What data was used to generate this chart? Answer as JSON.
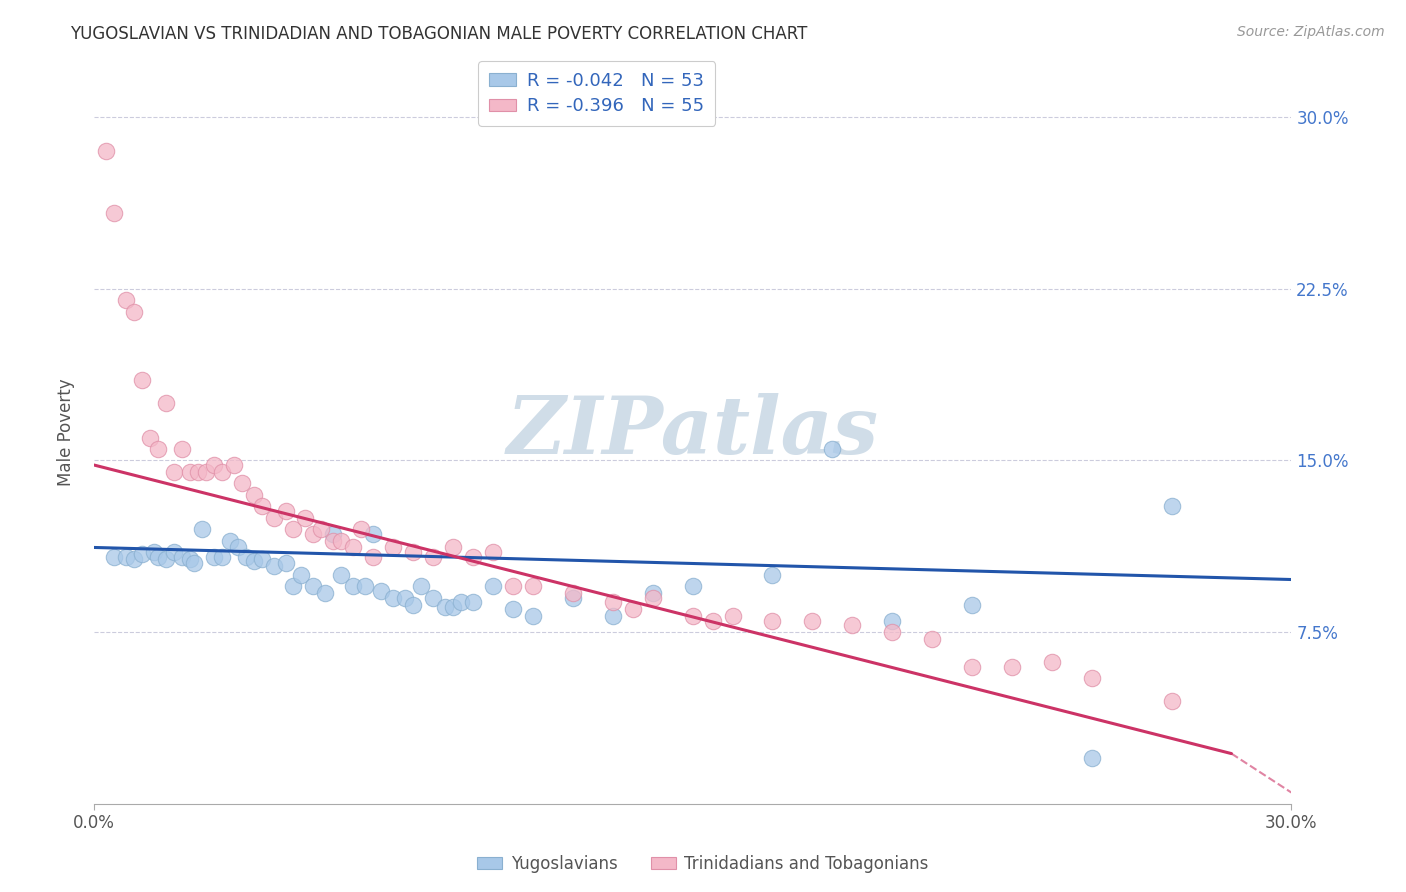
{
  "title": "YUGOSLAVIAN VS TRINIDADIAN AND TOBAGONIAN MALE POVERTY CORRELATION CHART",
  "source": "Source: ZipAtlas.com",
  "ylabel": "Male Poverty",
  "ytick_labels": [
    "7.5%",
    "15.0%",
    "22.5%",
    "30.0%"
  ],
  "ytick_values": [
    0.075,
    0.15,
    0.225,
    0.3
  ],
  "xlim": [
    0.0,
    0.3
  ],
  "ylim": [
    0.0,
    0.325
  ],
  "scatter1_color": "#a8c8e8",
  "scatter2_color": "#f4b8c8",
  "trendline1_color": "#2255aa",
  "trendline2_color": "#cc3366",
  "watermark_color": "#d0dde8",
  "watermark": "ZIPatlas",
  "legend_label1": "Yugoslavians",
  "legend_label2": "Trinidadians and Tobagonians",
  "R_yug": -0.042,
  "N_yug": 53,
  "R_tri": -0.396,
  "N_tri": 55,
  "trendline1_x0": 0.0,
  "trendline1_x1": 0.3,
  "trendline1_y0": 0.112,
  "trendline1_y1": 0.098,
  "trendline2_x0": 0.0,
  "trendline2_x1": 0.285,
  "trendline2_y0": 0.148,
  "trendline2_y1": 0.022,
  "background_color": "#ffffff",
  "grid_color": "#ccccdd",
  "yug_x": [
    0.005,
    0.008,
    0.01,
    0.012,
    0.015,
    0.016,
    0.018,
    0.02,
    0.022,
    0.024,
    0.025,
    0.027,
    0.03,
    0.032,
    0.034,
    0.036,
    0.038,
    0.04,
    0.042,
    0.045,
    0.048,
    0.05,
    0.052,
    0.055,
    0.058,
    0.06,
    0.062,
    0.065,
    0.068,
    0.07,
    0.072,
    0.075,
    0.078,
    0.08,
    0.082,
    0.085,
    0.088,
    0.09,
    0.092,
    0.095,
    0.1,
    0.105,
    0.11,
    0.12,
    0.13,
    0.14,
    0.15,
    0.17,
    0.185,
    0.2,
    0.22,
    0.25,
    0.27
  ],
  "yug_y": [
    0.108,
    0.108,
    0.107,
    0.109,
    0.11,
    0.108,
    0.107,
    0.11,
    0.108,
    0.107,
    0.105,
    0.12,
    0.108,
    0.108,
    0.115,
    0.112,
    0.108,
    0.106,
    0.107,
    0.104,
    0.105,
    0.095,
    0.1,
    0.095,
    0.092,
    0.118,
    0.1,
    0.095,
    0.095,
    0.118,
    0.093,
    0.09,
    0.09,
    0.087,
    0.095,
    0.09,
    0.086,
    0.086,
    0.088,
    0.088,
    0.095,
    0.085,
    0.082,
    0.09,
    0.082,
    0.092,
    0.095,
    0.1,
    0.155,
    0.08,
    0.087,
    0.02,
    0.13
  ],
  "tri_x": [
    0.003,
    0.005,
    0.008,
    0.01,
    0.012,
    0.014,
    0.016,
    0.018,
    0.02,
    0.022,
    0.024,
    0.026,
    0.028,
    0.03,
    0.032,
    0.035,
    0.037,
    0.04,
    0.042,
    0.045,
    0.048,
    0.05,
    0.053,
    0.055,
    0.057,
    0.06,
    0.062,
    0.065,
    0.067,
    0.07,
    0.075,
    0.08,
    0.085,
    0.09,
    0.095,
    0.1,
    0.105,
    0.11,
    0.12,
    0.13,
    0.135,
    0.14,
    0.15,
    0.155,
    0.16,
    0.17,
    0.18,
    0.19,
    0.2,
    0.21,
    0.22,
    0.23,
    0.24,
    0.25,
    0.27
  ],
  "tri_y": [
    0.285,
    0.258,
    0.22,
    0.215,
    0.185,
    0.16,
    0.155,
    0.175,
    0.145,
    0.155,
    0.145,
    0.145,
    0.145,
    0.148,
    0.145,
    0.148,
    0.14,
    0.135,
    0.13,
    0.125,
    0.128,
    0.12,
    0.125,
    0.118,
    0.12,
    0.115,
    0.115,
    0.112,
    0.12,
    0.108,
    0.112,
    0.11,
    0.108,
    0.112,
    0.108,
    0.11,
    0.095,
    0.095,
    0.092,
    0.088,
    0.085,
    0.09,
    0.082,
    0.08,
    0.082,
    0.08,
    0.08,
    0.078,
    0.075,
    0.072,
    0.06,
    0.06,
    0.062,
    0.055,
    0.045
  ]
}
